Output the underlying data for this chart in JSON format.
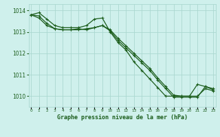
{
  "title": "Graphe pression niveau de la mer (hPa)",
  "xlabel_hours": [
    0,
    1,
    2,
    3,
    4,
    5,
    6,
    7,
    8,
    9,
    10,
    11,
    12,
    13,
    14,
    15,
    16,
    17,
    18,
    19,
    20,
    21,
    22,
    23
  ],
  "line1": [
    1013.8,
    1013.9,
    1013.6,
    1013.3,
    1013.2,
    1013.2,
    1013.2,
    1013.3,
    1013.6,
    1013.65,
    1013.0,
    1012.5,
    1012.15,
    1011.6,
    1011.2,
    1010.8,
    1010.4,
    1010.0,
    1010.0,
    1010.0,
    1010.0,
    1010.55,
    1010.45,
    1010.35
  ],
  "line2": [
    1013.8,
    1013.65,
    1013.3,
    1013.15,
    1013.1,
    1013.1,
    1013.15,
    1013.1,
    1013.2,
    1013.3,
    1013.1,
    1012.7,
    1012.35,
    1012.0,
    1011.65,
    1011.3,
    1010.85,
    1010.45,
    1010.05,
    1010.0,
    1010.0,
    1010.0,
    1010.35,
    1010.25
  ],
  "line3": [
    1013.8,
    1013.75,
    1013.4,
    1013.15,
    1013.1,
    1013.1,
    1013.1,
    1013.15,
    1013.2,
    1013.3,
    1013.05,
    1012.6,
    1012.25,
    1011.9,
    1011.55,
    1011.2,
    1010.75,
    1010.35,
    1009.95,
    1009.95,
    1009.95,
    1009.95,
    1010.45,
    1010.3
  ],
  "bg_color": "#cff0ec",
  "grid_color": "#aad8d0",
  "line_color": "#1a5c1a",
  "ylim": [
    1009.5,
    1014.3
  ],
  "yticks": [
    1010,
    1011,
    1012,
    1013,
    1014
  ],
  "marker": "+"
}
